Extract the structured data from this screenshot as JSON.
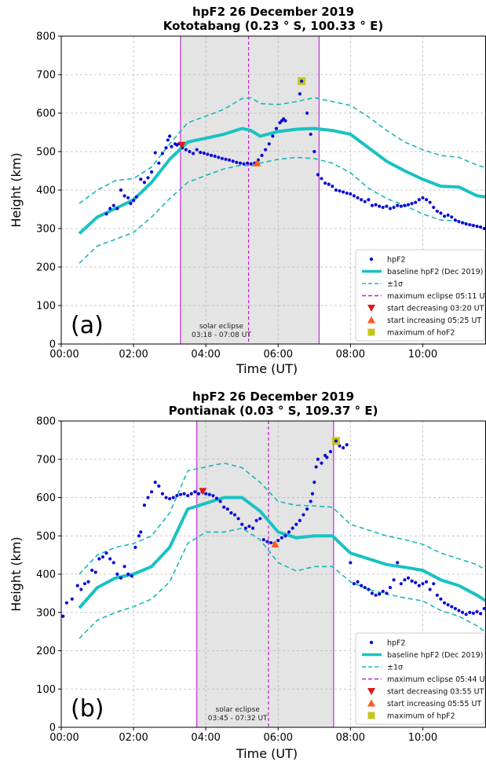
{
  "colors": {
    "hpf2_points": "#0b0bd9",
    "baseline": "#19c2c2",
    "sigma": "#19b8b8",
    "eclipse_bound": "#c23bd6",
    "max_eclipse": "#c21ad2",
    "start_decreasing": "#e0161b",
    "start_increasing": "#ff5a1a",
    "maximum_hof2": "#c4c71c",
    "shade": "#e4e4e4",
    "grid": "#b8b8b8"
  },
  "chart_data": [
    {
      "type": "scatter",
      "panel_label": "(a)",
      "title_line1": "hpF2 26 December 2019",
      "title_line2": "Kototabang (0.23 ° S, 100.33 ° E)",
      "xlabel": "Time (UT)",
      "ylabel": "Height (km)",
      "xlim": [
        0,
        11.75
      ],
      "ylim": [
        0,
        800
      ],
      "xticks": [
        0,
        2,
        4,
        6,
        8,
        10
      ],
      "xtick_labels": [
        "00:00",
        "02:00",
        "04:00",
        "06:00",
        "08:00",
        "10:00"
      ],
      "yticks": [
        0,
        100,
        200,
        300,
        400,
        500,
        600,
        700,
        800
      ],
      "grid": true,
      "legend_position": "lower-right",
      "eclipse_label": "solar eclipse",
      "eclipse_range_label": "03:18 - 07:08 UT",
      "eclipse_start": 3.3,
      "eclipse_end": 7.133,
      "max_eclipse": 5.183,
      "legend": [
        "hpF2",
        "baseline hpF2 (Dec 2019)",
        "±1σ",
        "maximum eclipse 05:11 UT",
        "start decreasing 03:20 UT",
        "start increasing 05:25 UT",
        "maximum of hoF2"
      ],
      "baseline_x": [
        0.5,
        1.0,
        1.5,
        2.0,
        2.5,
        3.0,
        3.5,
        4.0,
        4.5,
        5.0,
        5.25,
        5.5,
        6.0,
        6.5,
        7.0,
        7.5,
        8.0,
        8.5,
        9.0,
        9.5,
        10.0,
        10.5,
        11.0,
        11.5,
        11.75
      ],
      "baseline_y": [
        287,
        330,
        352,
        375,
        420,
        480,
        525,
        535,
        545,
        560,
        555,
        540,
        552,
        558,
        560,
        555,
        545,
        510,
        475,
        450,
        428,
        410,
        408,
        385,
        382
      ],
      "upper_sigma": [
        365,
        400,
        425,
        430,
        460,
        520,
        575,
        592,
        610,
        638,
        640,
        625,
        622,
        630,
        640,
        630,
        620,
        590,
        555,
        525,
        505,
        490,
        485,
        465,
        458
      ],
      "lower_sigma": [
        210,
        255,
        272,
        290,
        330,
        378,
        420,
        438,
        455,
        465,
        462,
        470,
        480,
        485,
        482,
        470,
        445,
        405,
        378,
        360,
        338,
        322,
        320,
        305,
        298
      ],
      "points": [
        [
          1.25,
          338
        ],
        [
          1.35,
          352
        ],
        [
          1.45,
          360
        ],
        [
          1.55,
          352
        ],
        [
          1.65,
          400
        ],
        [
          1.75,
          385
        ],
        [
          1.85,
          380
        ],
        [
          1.92,
          365
        ],
        [
          2.0,
          373
        ],
        [
          2.08,
          382
        ],
        [
          2.2,
          428
        ],
        [
          2.3,
          420
        ],
        [
          2.4,
          432
        ],
        [
          2.5,
          447
        ],
        [
          2.6,
          497
        ],
        [
          2.7,
          470
        ],
        [
          2.8,
          495
        ],
        [
          2.9,
          510
        ],
        [
          2.95,
          530
        ],
        [
          3.0,
          540
        ],
        [
          3.05,
          513
        ],
        [
          3.15,
          520
        ],
        [
          3.2,
          517
        ],
        [
          3.25,
          520
        ],
        [
          3.35,
          510
        ],
        [
          3.45,
          505
        ],
        [
          3.55,
          500
        ],
        [
          3.65,
          495
        ],
        [
          3.75,
          505
        ],
        [
          3.85,
          498
        ],
        [
          3.95,
          496
        ],
        [
          4.05,
          493
        ],
        [
          4.15,
          490
        ],
        [
          4.25,
          488
        ],
        [
          4.35,
          485
        ],
        [
          4.45,
          482
        ],
        [
          4.55,
          480
        ],
        [
          4.65,
          478
        ],
        [
          4.75,
          475
        ],
        [
          4.85,
          472
        ],
        [
          4.95,
          470
        ],
        [
          5.05,
          468
        ],
        [
          5.15,
          470
        ],
        [
          5.25,
          468
        ],
        [
          5.35,
          470
        ],
        [
          5.45,
          478
        ],
        [
          5.55,
          490
        ],
        [
          5.65,
          505
        ],
        [
          5.75,
          520
        ],
        [
          5.85,
          540
        ],
        [
          5.95,
          560
        ],
        [
          6.05,
          575
        ],
        [
          6.1,
          580
        ],
        [
          6.15,
          585
        ],
        [
          6.2,
          580
        ],
        [
          6.6,
          650
        ],
        [
          6.65,
          680
        ],
        [
          6.8,
          600
        ],
        [
          6.9,
          545
        ],
        [
          7.0,
          500
        ],
        [
          7.1,
          440
        ],
        [
          7.2,
          430
        ],
        [
          7.3,
          418
        ],
        [
          7.4,
          415
        ],
        [
          7.5,
          410
        ],
        [
          7.6,
          400
        ],
        [
          7.7,
          398
        ],
        [
          7.8,
          395
        ],
        [
          7.9,
          392
        ],
        [
          8.0,
          390
        ],
        [
          8.1,
          385
        ],
        [
          8.2,
          380
        ],
        [
          8.3,
          375
        ],
        [
          8.4,
          370
        ],
        [
          8.5,
          375
        ],
        [
          8.6,
          360
        ],
        [
          8.7,
          362
        ],
        [
          8.8,
          358
        ],
        [
          8.9,
          355
        ],
        [
          9.0,
          358
        ],
        [
          9.1,
          352
        ],
        [
          9.2,
          355
        ],
        [
          9.3,
          360
        ],
        [
          9.4,
          358
        ],
        [
          9.5,
          360
        ],
        [
          9.6,
          362
        ],
        [
          9.7,
          365
        ],
        [
          9.8,
          368
        ],
        [
          9.9,
          375
        ],
        [
          10.0,
          380
        ],
        [
          10.1,
          375
        ],
        [
          10.2,
          368
        ],
        [
          10.3,
          355
        ],
        [
          10.4,
          345
        ],
        [
          10.5,
          340
        ],
        [
          10.6,
          332
        ],
        [
          10.7,
          335
        ],
        [
          10.8,
          330
        ],
        [
          10.9,
          322
        ],
        [
          11.0,
          318
        ],
        [
          11.1,
          315
        ],
        [
          11.2,
          312
        ],
        [
          11.3,
          310
        ],
        [
          11.4,
          308
        ],
        [
          11.5,
          306
        ],
        [
          11.6,
          304
        ],
        [
          11.7,
          300
        ]
      ],
      "start_decreasing": [
        3.333,
        517
      ],
      "start_increasing": [
        5.417,
        470
      ],
      "maximum": [
        6.65,
        683
      ]
    },
    {
      "type": "scatter",
      "panel_label": "(b)",
      "title_line1": "hpF2 26 December 2019",
      "title_line2": "Pontianak (0.03 ° S, 109.37 ° E)",
      "xlabel": "Time (UT)",
      "ylabel": "Height (km)",
      "xlim": [
        0,
        11.75
      ],
      "ylim": [
        0,
        800
      ],
      "xticks": [
        0,
        2,
        4,
        6,
        8,
        10
      ],
      "xtick_labels": [
        "00:00",
        "02:00",
        "04:00",
        "06:00",
        "08:00",
        "10:00"
      ],
      "yticks": [
        0,
        100,
        200,
        300,
        400,
        500,
        600,
        700,
        800
      ],
      "grid": true,
      "legend_position": "lower-right",
      "eclipse_label": "solar eclipse",
      "eclipse_range_label": "03:45 - 07:32 UT",
      "eclipse_start": 3.75,
      "eclipse_end": 7.533,
      "max_eclipse": 5.733,
      "legend": [
        "hpF2",
        "baseline hpF2 (Dec 2019)",
        "±1σ",
        "maximum eclipse 05:44 UT",
        "start decreasing 03:55 UT",
        "start increasing 05:55 UT",
        "maximum of hpF2"
      ],
      "baseline_x": [
        0.5,
        1.0,
        1.5,
        2.0,
        2.5,
        3.0,
        3.5,
        4.0,
        4.5,
        5.0,
        5.5,
        6.0,
        6.5,
        7.0,
        7.5,
        8.0,
        8.5,
        9.0,
        9.5,
        10.0,
        10.5,
        11.0,
        11.5,
        11.75
      ],
      "baseline_y": [
        312,
        365,
        390,
        400,
        420,
        470,
        570,
        585,
        600,
        600,
        565,
        510,
        495,
        500,
        500,
        455,
        440,
        425,
        418,
        410,
        385,
        370,
        345,
        330
      ],
      "upper_sigma": [
        400,
        450,
        470,
        480,
        500,
        560,
        670,
        680,
        690,
        678,
        640,
        590,
        580,
        578,
        575,
        530,
        515,
        500,
        490,
        478,
        455,
        440,
        425,
        410
      ],
      "lower_sigma": [
        232,
        280,
        300,
        315,
        335,
        380,
        480,
        510,
        510,
        520,
        490,
        430,
        408,
        420,
        420,
        380,
        360,
        348,
        338,
        330,
        305,
        290,
        265,
        248
      ],
      "points": [
        [
          0.05,
          290
        ],
        [
          0.15,
          325
        ],
        [
          0.3,
          335
        ],
        [
          0.45,
          370
        ],
        [
          0.55,
          360
        ],
        [
          0.65,
          375
        ],
        [
          0.75,
          380
        ],
        [
          0.85,
          410
        ],
        [
          0.95,
          405
        ],
        [
          1.05,
          440
        ],
        [
          1.15,
          445
        ],
        [
          1.25,
          455
        ],
        [
          1.35,
          440
        ],
        [
          1.45,
          430
        ],
        [
          1.55,
          400
        ],
        [
          1.65,
          390
        ],
        [
          1.75,
          420
        ],
        [
          1.85,
          400
        ],
        [
          1.95,
          395
        ],
        [
          2.05,
          470
        ],
        [
          2.15,
          500
        ],
        [
          2.2,
          510
        ],
        [
          2.3,
          580
        ],
        [
          2.4,
          600
        ],
        [
          2.5,
          615
        ],
        [
          2.6,
          640
        ],
        [
          2.7,
          630
        ],
        [
          2.8,
          610
        ],
        [
          2.9,
          600
        ],
        [
          3.0,
          597
        ],
        [
          3.1,
          600
        ],
        [
          3.2,
          605
        ],
        [
          3.3,
          608
        ],
        [
          3.4,
          610
        ],
        [
          3.5,
          605
        ],
        [
          3.6,
          610
        ],
        [
          3.7,
          615
        ],
        [
          3.8,
          610
        ],
        [
          3.9,
          615
        ],
        [
          4.0,
          610
        ],
        [
          4.1,
          608
        ],
        [
          4.2,
          605
        ],
        [
          4.3,
          598
        ],
        [
          4.4,
          590
        ],
        [
          4.5,
          575
        ],
        [
          4.6,
          570
        ],
        [
          4.7,
          560
        ],
        [
          4.8,
          555
        ],
        [
          4.9,
          545
        ],
        [
          5.0,
          530
        ],
        [
          5.1,
          520
        ],
        [
          5.2,
          525
        ],
        [
          5.3,
          520
        ],
        [
          5.4,
          540
        ],
        [
          5.5,
          545
        ],
        [
          5.6,
          490
        ],
        [
          5.7,
          485
        ],
        [
          5.8,
          482
        ],
        [
          5.9,
          480
        ],
        [
          6.0,
          488
        ],
        [
          6.1,
          495
        ],
        [
          6.2,
          500
        ],
        [
          6.3,
          510
        ],
        [
          6.4,
          520
        ],
        [
          6.5,
          530
        ],
        [
          6.6,
          540
        ],
        [
          6.7,
          555
        ],
        [
          6.8,
          570
        ],
        [
          6.9,
          590
        ],
        [
          6.95,
          610
        ],
        [
          7.0,
          640
        ],
        [
          7.05,
          680
        ],
        [
          7.1,
          700
        ],
        [
          7.2,
          690
        ],
        [
          7.3,
          710
        ],
        [
          7.35,
          705
        ],
        [
          7.45,
          720
        ],
        [
          7.6,
          745
        ],
        [
          7.7,
          735
        ],
        [
          7.8,
          730
        ],
        [
          7.9,
          738
        ],
        [
          8.0,
          430
        ],
        [
          8.1,
          375
        ],
        [
          8.2,
          380
        ],
        [
          8.3,
          370
        ],
        [
          8.4,
          365
        ],
        [
          8.5,
          360
        ],
        [
          8.6,
          350
        ],
        [
          8.7,
          345
        ],
        [
          8.8,
          348
        ],
        [
          8.9,
          355
        ],
        [
          9.0,
          350
        ],
        [
          9.1,
          365
        ],
        [
          9.2,
          385
        ],
        [
          9.3,
          430
        ],
        [
          9.4,
          375
        ],
        [
          9.5,
          385
        ],
        [
          9.6,
          390
        ],
        [
          9.7,
          382
        ],
        [
          9.8,
          378
        ],
        [
          9.9,
          370
        ],
        [
          10.0,
          375
        ],
        [
          10.1,
          380
        ],
        [
          10.2,
          360
        ],
        [
          10.3,
          375
        ],
        [
          10.4,
          345
        ],
        [
          10.5,
          335
        ],
        [
          10.6,
          325
        ],
        [
          10.7,
          320
        ],
        [
          10.8,
          315
        ],
        [
          10.9,
          310
        ],
        [
          11.0,
          305
        ],
        [
          11.1,
          300
        ],
        [
          11.2,
          295
        ],
        [
          11.3,
          300
        ],
        [
          11.4,
          298
        ],
        [
          11.5,
          302
        ],
        [
          11.6,
          297
        ],
        [
          11.7,
          310
        ]
      ],
      "start_decreasing": [
        3.917,
        617
      ],
      "start_increasing": [
        5.917,
        478
      ],
      "maximum": [
        7.6,
        748
      ]
    }
  ]
}
